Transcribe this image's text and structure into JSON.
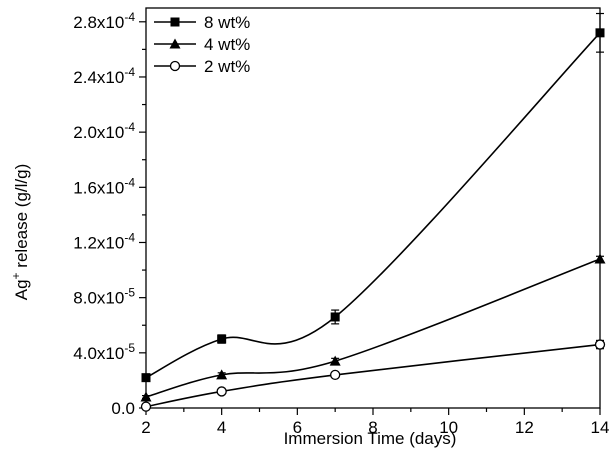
{
  "chart_data": {
    "type": "line",
    "xlabel": "Immersion Time (days)",
    "ylabel_main": "Ag",
    "ylabel_sup": "+",
    "ylabel_rest": " release (g/l/g)",
    "xlim": [
      2,
      14
    ],
    "ylim": [
      0,
      0.00029
    ],
    "x_ticks": [
      2,
      4,
      6,
      8,
      10,
      12,
      14
    ],
    "x_tick_labels": [
      "2",
      "4",
      "6",
      "8",
      "10",
      "12",
      "14"
    ],
    "y_ticks": [
      0,
      4e-05,
      8e-05,
      0.00012,
      0.00016,
      0.0002,
      0.00024,
      0.00028
    ],
    "y_tick_labels": [
      {
        "mant": "0.0",
        "exp": ""
      },
      {
        "mant": "4.0x10",
        "exp": "-5"
      },
      {
        "mant": "8.0x10",
        "exp": "-5"
      },
      {
        "mant": "1.2x10",
        "exp": "-4"
      },
      {
        "mant": "1.6x10",
        "exp": "-4"
      },
      {
        "mant": "2.0x10",
        "exp": "-4"
      },
      {
        "mant": "2.4x10",
        "exp": "-4"
      },
      {
        "mant": "2.8x10",
        "exp": "-4"
      }
    ],
    "legend_position": "top-left",
    "grid": false,
    "series": [
      {
        "name": "8 wt%",
        "marker": "square",
        "x": [
          2,
          4,
          7,
          14
        ],
        "y": [
          2.2e-05,
          5e-05,
          6.6e-05,
          0.000272
        ],
        "err": [
          1.5e-06,
          3e-06,
          5e-06,
          1.4e-05
        ]
      },
      {
        "name": "4 wt%",
        "marker": "triangle",
        "x": [
          2,
          4,
          7,
          14
        ],
        "y": [
          8e-06,
          2.4e-05,
          3.4e-05,
          0.000108
        ],
        "err": [
          1e-06,
          1.5e-06,
          2e-06,
          2e-06
        ]
      },
      {
        "name": "2 wt%",
        "marker": "circle-open",
        "x": [
          2,
          4,
          7,
          14
        ],
        "y": [
          1e-06,
          1.2e-05,
          2.4e-05,
          4.6e-05
        ],
        "err": [
          1e-06,
          1e-06,
          1.5e-06,
          3e-06
        ]
      }
    ]
  }
}
